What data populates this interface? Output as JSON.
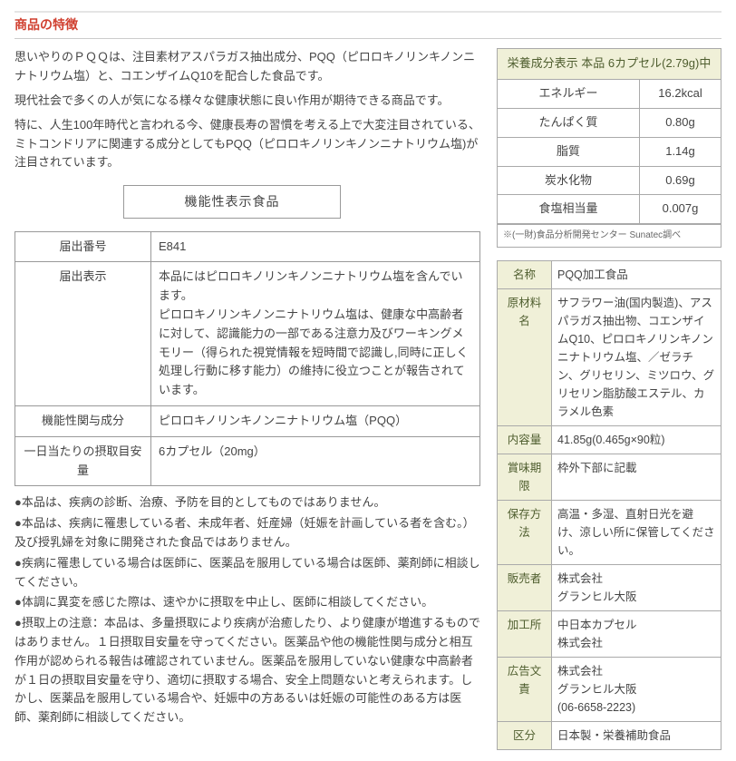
{
  "section_title": "商品の特徴",
  "paragraphs": [
    "思いやりのＰＱＱは、注目素材アスパラガス抽出成分、PQQ（ピロロキノリンキノンニナトリウム塩）と、コエンザイムQ10を配合した食品です。",
    "現代社会で多くの人が気になる様々な健康状態に良い作用が期待できる商品です。",
    "特に、人生100年時代と言われる今、健康長寿の習慣を考える上で大変注目されている、ミトコンドリアに関連する成分としてもPQQ（ピロロキノリンキノンニナトリウム塩)が注目されています。"
  ],
  "func_header": "機能性表示食品",
  "func_table": [
    {
      "label": "届出番号",
      "value": "E841"
    },
    {
      "label": "届出表示",
      "value": "本品にはピロロキノリンキノンニナトリウム塩を含んでいます。\nピロロキノリンキノンニナトリウム塩は、健康な中高齢者に対して、認識能力の一部である注意力及びワーキングメモリー（得られた視覚情報を短時間で認識し,同時に正しく処理し行動に移す能力）の維持に役立つことが報告されています。"
    },
    {
      "label": "機能性関与成分",
      "value": "ピロロキノリンキノンニナトリウム塩（PQQ）"
    },
    {
      "label": "一日当たりの摂取目安量",
      "value": "6カプセル（20mg）"
    }
  ],
  "bullets": [
    "●本品は、疾病の診断、治療、予防を目的としてものではありません。",
    "●本品は、疾病に罹患している者、未成年者、妊産婦（妊娠を計画している者を含む。）及び授乳婦を対象に開発された食品ではありません。",
    "●疾病に罹患している場合は医師に、医薬品を服用している場合は医師、薬剤師に相談してください。",
    "●体調に異変を感じた際は、速やかに摂取を中止し、医師に相談してください。",
    "●摂取上の注意：本品は、多量摂取により疾病が治癒したり、より健康が増進するものではありません。１日摂取目安量を守ってください。医薬品や他の機能性関与成分と相互作用が認められる報告は確認されていません。医薬品を服用していない健康な中高齢者が１日の摂取目安量を守り、適切に摂取する場合、安全上問題ないと考えられます。しかし、医薬品を服用している場合や、妊娠中の方あるいは妊娠の可能性のある方は医師、薬剤師に相談してください。"
  ],
  "nutrition": {
    "title": "栄養成分表示 本品 6カプセル(2.79g)中",
    "rows": [
      {
        "label": "エネルギー",
        "value": "16.2kcal"
      },
      {
        "label": "たんぱく質",
        "value": "0.80g"
      },
      {
        "label": "脂質",
        "value": "1.14g"
      },
      {
        "label": "炭水化物",
        "value": "0.69g"
      },
      {
        "label": "食塩相当量",
        "value": "0.007g"
      }
    ],
    "note": "※(一財)食品分析開発センター Sunatec調べ"
  },
  "spec": [
    {
      "label": "名称",
      "value": "PQQ加工食品"
    },
    {
      "label": "原材料名",
      "value": "サフラワー油(国内製造)、アスパラガス抽出物、コエンザイムQ10、ピロロキノリンキノンニナトリウム塩、／ゼラチン、グリセリン、ミツロウ、グリセリン脂肪酸エステル、カラメル色素"
    },
    {
      "label": "内容量",
      "value": "41.85g(0.465g×90粒)"
    },
    {
      "label": "賞味期限",
      "value": "枠外下部に記載"
    },
    {
      "label": "保存方法",
      "value": "高温・多湿、直射日光を避け、涼しい所に保管してください。"
    },
    {
      "label": "販売者",
      "value": "株式会社\nグランヒル大阪"
    },
    {
      "label": "加工所",
      "value": "中日本カプセル\n株式会社"
    },
    {
      "label": "広告文責",
      "value": "株式会社\nグランヒル大阪\n(06-6658-2223)"
    },
    {
      "label": "区分",
      "value": "日本製・栄養補助食品"
    }
  ]
}
